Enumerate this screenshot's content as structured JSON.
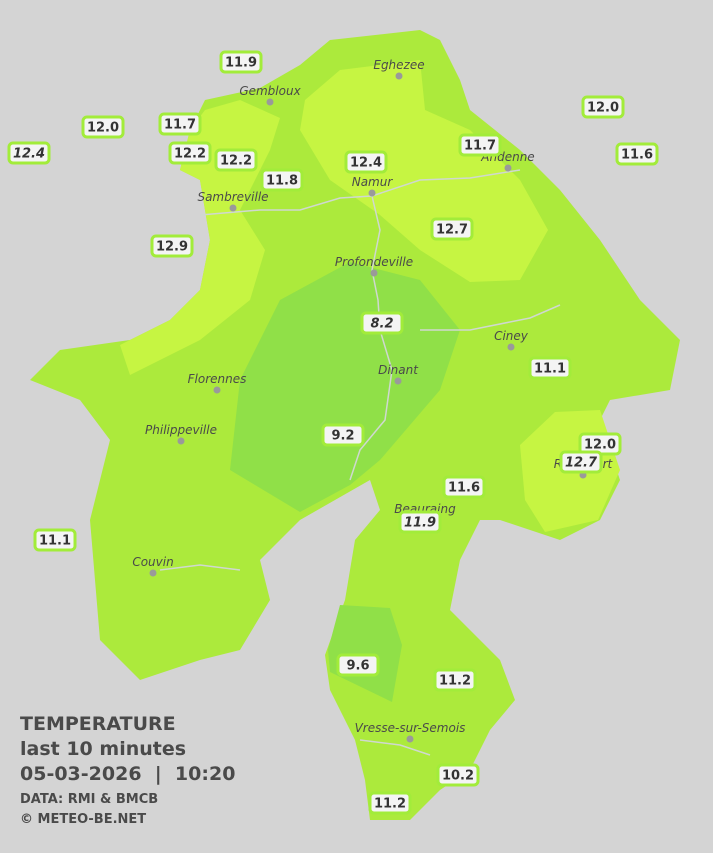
{
  "legend": {
    "title": "TEMPERATURE",
    "subtitle": "last 10 minutes",
    "datetime": "05-03-2026  |  10:20",
    "source": "DATA: RMI & BMCB",
    "credit": "© METEO-BE.NET"
  },
  "cities": [
    "Eghezee",
    "Gembloux",
    "Andenne",
    "Namur",
    "Sambreville",
    "Profondeville",
    "Ciney",
    "Florennes",
    "Dinant",
    "Philippeville",
    "Rochefort",
    "Beauraing",
    "Couvin",
    "Vresse-sur-Semois"
  ],
  "stations": [
    "11.9",
    "12.0",
    "11.7",
    "12.4",
    "12.2",
    "12.2",
    "11.8",
    "12.4",
    "11.7",
    "12.0",
    "11.6",
    "12.7",
    "12.9",
    "8.2",
    "11.1",
    "9.2",
    "12.0",
    "12.7",
    "11.6",
    "11.9",
    "11.1",
    "9.6",
    "11.2",
    "10.2",
    "11.2"
  ]
}
